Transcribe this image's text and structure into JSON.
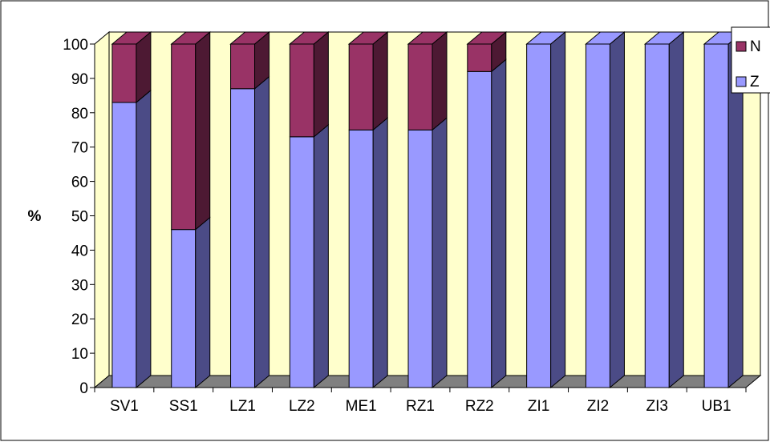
{
  "chart_data": {
    "type": "bar",
    "stacked": true,
    "three_d": true,
    "ylabel": "%",
    "ylim": [
      0,
      100
    ],
    "yticks": [
      0,
      10,
      20,
      30,
      40,
      50,
      60,
      70,
      80,
      90,
      100
    ],
    "grid": false,
    "legend_placement": "top-right",
    "categories": [
      "SV1",
      "SS1",
      "LZ1",
      "LZ2",
      "ME1",
      "RZ1",
      "RZ2",
      "ZI1",
      "ZI2",
      "ZI3",
      "UB1"
    ],
    "series": [
      {
        "name": "Z",
        "color": "#9999FF",
        "side_color": "#4B4B86",
        "values": [
          83,
          46,
          87,
          73,
          75,
          75,
          92,
          100,
          100,
          100,
          100
        ]
      },
      {
        "name": "N",
        "color": "#993366",
        "side_color": "#4D1933",
        "values": [
          17,
          54,
          13,
          27,
          25,
          25,
          8,
          0,
          0,
          0,
          0
        ]
      }
    ],
    "wall_color": "#FFFFCC",
    "floor_color": "#808080"
  }
}
